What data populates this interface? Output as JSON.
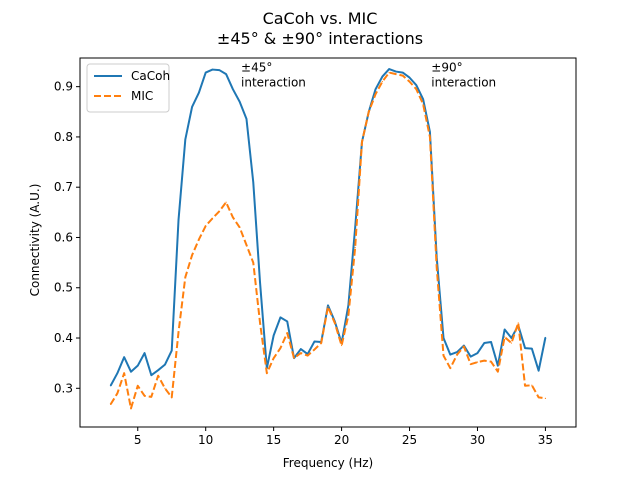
{
  "chart_data": {
    "type": "line",
    "title_line1": "CaCoh vs. MIC",
    "title_line2": "±45° & ±90° interactions",
    "xlabel": "Frequency (Hz)",
    "ylabel": "Connectivity (A.U.)",
    "xlim": [
      0.75,
      37.25
    ],
    "ylim": [
      0.223,
      0.957
    ],
    "xticks": [
      5,
      10,
      15,
      20,
      25,
      30,
      35
    ],
    "yticks": [
      0.3,
      0.4,
      0.5,
      0.6,
      0.7,
      0.8,
      0.9
    ],
    "legend_position": "upper-left",
    "annotations": [
      {
        "lines": [
          "±45°",
          "interaction"
        ],
        "x": 12.6,
        "y": 0.93
      },
      {
        "lines": [
          "±90°",
          "interaction"
        ],
        "x": 26.6,
        "y": 0.93
      }
    ],
    "x": [
      3,
      3.5,
      4,
      4.5,
      5,
      5.5,
      6,
      6.5,
      7,
      7.5,
      8,
      8.5,
      9,
      9.5,
      10,
      10.5,
      11,
      11.5,
      12,
      12.5,
      13,
      13.5,
      14,
      14.5,
      15,
      15.5,
      16,
      16.5,
      17,
      17.5,
      18,
      18.5,
      19,
      19.5,
      20,
      20.5,
      21,
      21.5,
      22,
      22.5,
      23,
      23.5,
      24,
      24.5,
      25,
      25.5,
      26,
      26.5,
      27,
      27.5,
      28,
      28.5,
      29,
      29.5,
      30,
      30.5,
      31,
      31.5,
      32,
      32.5,
      33,
      33.5,
      34,
      34.5,
      35
    ],
    "series": [
      {
        "name": "CaCoh",
        "color": "#1f77b4",
        "dash": "solid",
        "values": [
          0.305,
          0.33,
          0.362,
          0.333,
          0.345,
          0.37,
          0.326,
          0.336,
          0.347,
          0.375,
          0.635,
          0.795,
          0.86,
          0.888,
          0.928,
          0.934,
          0.933,
          0.925,
          0.895,
          0.87,
          0.836,
          0.71,
          0.51,
          0.34,
          0.405,
          0.441,
          0.433,
          0.36,
          0.378,
          0.368,
          0.393,
          0.392,
          0.465,
          0.433,
          0.39,
          0.465,
          0.62,
          0.79,
          0.85,
          0.895,
          0.92,
          0.935,
          0.93,
          0.928,
          0.918,
          0.903,
          0.875,
          0.81,
          0.56,
          0.4,
          0.367,
          0.372,
          0.385,
          0.363,
          0.37,
          0.39,
          0.392,
          0.345,
          0.417,
          0.4,
          0.425,
          0.38,
          0.379,
          0.335,
          0.401
        ]
      },
      {
        "name": "MIC",
        "color": "#ff7f0e",
        "dash": "dashed",
        "values": [
          0.268,
          0.29,
          0.33,
          0.26,
          0.305,
          0.285,
          0.283,
          0.325,
          0.3,
          0.282,
          0.412,
          0.521,
          0.565,
          0.596,
          0.623,
          0.638,
          0.652,
          0.67,
          0.64,
          0.62,
          0.585,
          0.55,
          0.43,
          0.33,
          0.36,
          0.38,
          0.41,
          0.36,
          0.37,
          0.365,
          0.377,
          0.39,
          0.462,
          0.43,
          0.385,
          0.445,
          0.58,
          0.79,
          0.85,
          0.885,
          0.91,
          0.928,
          0.925,
          0.922,
          0.91,
          0.895,
          0.865,
          0.8,
          0.54,
          0.365,
          0.34,
          0.367,
          0.383,
          0.348,
          0.352,
          0.355,
          0.353,
          0.333,
          0.402,
          0.39,
          0.43,
          0.305,
          0.306,
          0.282,
          0.28
        ]
      }
    ]
  }
}
